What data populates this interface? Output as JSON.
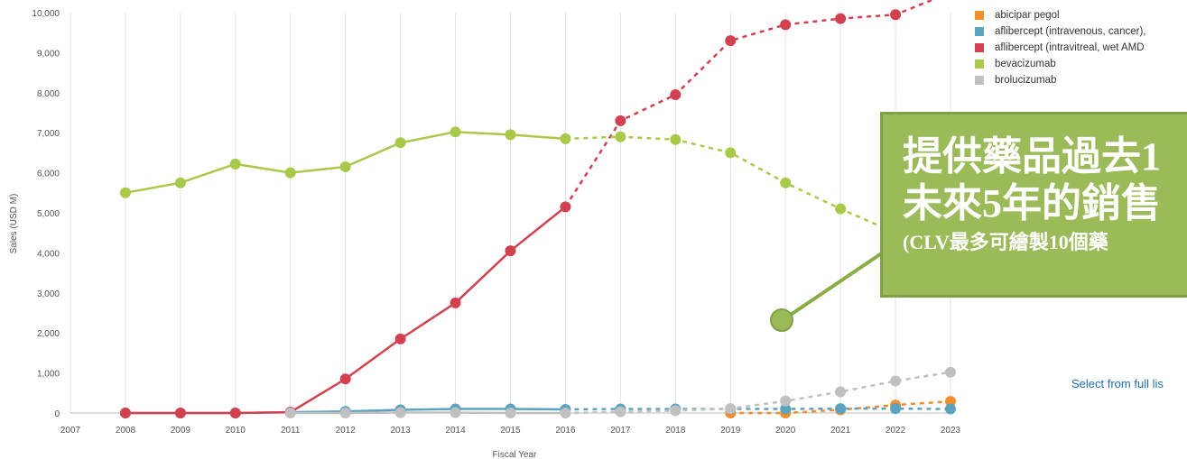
{
  "chart_data": {
    "type": "line",
    "xlabel": "Fiscal Year",
    "ylabel": "Sales (USD M)",
    "xlim": [
      2007,
      2023
    ],
    "ylim": [
      0,
      10000
    ],
    "x_ticks": [
      "2007",
      "2008",
      "2009",
      "2010",
      "2011",
      "2012",
      "2013",
      "2014",
      "2015",
      "2016",
      "2017",
      "2018",
      "2019",
      "2020",
      "2021",
      "2022",
      "2023"
    ],
    "y_ticks": [
      "0",
      "1,000",
      "2,000",
      "3,000",
      "4,000",
      "5,000",
      "6,000",
      "7,000",
      "8,000",
      "9,000",
      "10,000"
    ],
    "grid": "vertical",
    "legend_position": "top-right",
    "series": [
      {
        "name": "abicipar pegol",
        "color": "#f28e2b",
        "dashed_from": 2016,
        "x": [
          2019,
          2020,
          2021,
          2022,
          2023
        ],
        "values": [
          0,
          0,
          80,
          200,
          290
        ]
      },
      {
        "name": "aflibercept (intravenous, cancer),",
        "color": "#5ba3bf",
        "dashed_from": 2016,
        "x": [
          2008,
          2009,
          2010,
          2011,
          2012,
          2013,
          2014,
          2015,
          2016,
          2017,
          2018,
          2019,
          2020,
          2021,
          2022,
          2023
        ],
        "values": [
          0,
          0,
          0,
          20,
          40,
          80,
          100,
          100,
          90,
          100,
          100,
          100,
          100,
          110,
          110,
          100
        ]
      },
      {
        "name": "aflibercept (intravitreal, wet AMD",
        "color": "#d1414f",
        "dashed_from": 2016,
        "x": [
          2008,
          2009,
          2010,
          2011,
          2012,
          2013,
          2014,
          2015,
          2016,
          2017,
          2018,
          2019,
          2020,
          2021,
          2022,
          2023
        ],
        "values": [
          0,
          0,
          0,
          20,
          850,
          1850,
          2750,
          4050,
          5150,
          7300,
          7950,
          9300,
          9700,
          9850,
          9950,
          10500
        ]
      },
      {
        "name": "bevacizumab",
        "color": "#a9c94a",
        "dashed_from": 2016,
        "x": [
          2008,
          2009,
          2010,
          2011,
          2012,
          2013,
          2014,
          2015,
          2016,
          2017,
          2018,
          2019,
          2020,
          2021,
          2022
        ],
        "values": [
          5500,
          5750,
          6220,
          6000,
          6150,
          6750,
          7020,
          6950,
          6850,
          6900,
          6830,
          6500,
          5750,
          5100,
          4500
        ]
      },
      {
        "name": "brolucizumab",
        "color": "#c0c0c0",
        "dashed_from": 2016,
        "x": [
          2011,
          2012,
          2013,
          2014,
          2015,
          2016,
          2017,
          2018,
          2019,
          2020,
          2021,
          2022,
          2023
        ],
        "values": [
          0,
          0,
          10,
          10,
          0,
          0,
          30,
          60,
          110,
          300,
          530,
          800,
          1020
        ]
      }
    ]
  },
  "callout": {
    "line1": "提供藥品過去1",
    "line2": "未來5年的銷售",
    "line3": "(CLV最多可繪製10個藥"
  },
  "select_link": "Select from full lis"
}
